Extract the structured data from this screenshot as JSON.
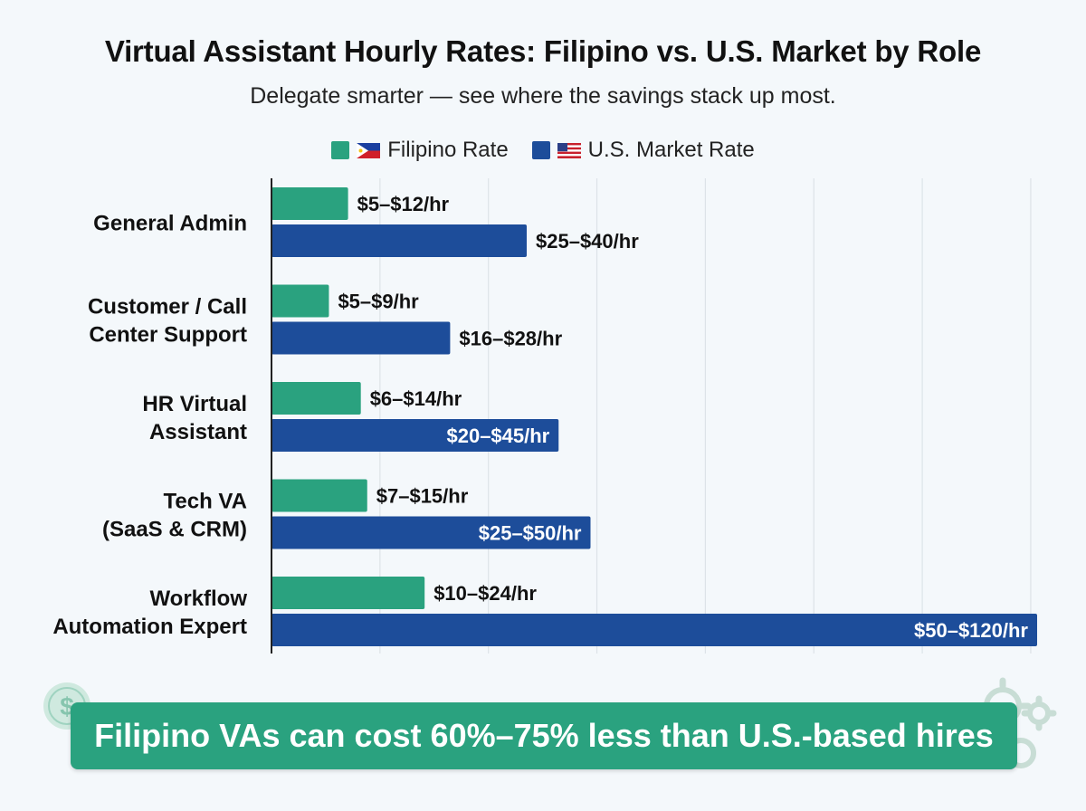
{
  "title": "Virtual Assistant Hourly Rates: Filipino vs. U.S. Market by Role",
  "subtitle": "Delegate smarter — see where the savings stack up most.",
  "legend": {
    "filipino": {
      "label": "Filipino Rate",
      "color": "#2aa27f",
      "flag_icon": "philippines-flag-icon"
    },
    "us": {
      "label": "U.S. Market Rate",
      "color": "#1d4d9a",
      "flag_icon": "us-flag-icon"
    }
  },
  "banner": {
    "text": "Filipino VAs can cost 60%–75% less than U.S.-based hires"
  },
  "chart_data": {
    "type": "bar",
    "orientation": "horizontal",
    "categories": [
      [
        "General Admin"
      ],
      [
        "Customer / Call",
        "Center Support"
      ],
      [
        "HR Virtual",
        "Assistant"
      ],
      [
        "Tech VA",
        "(SaaS & CRM)"
      ],
      [
        "Workflow",
        "Automation Expert"
      ]
    ],
    "xlim": [
      0,
      125
    ],
    "grid": true,
    "legend_position": "top-center",
    "series": [
      {
        "name": "Filipino Rate",
        "color": "#2aa27f",
        "values": [
          12,
          9,
          14,
          15,
          24
        ],
        "labels": [
          "$5–$12/hr",
          "$5–$9/hr",
          "$6–$14/hr",
          "$7–$15/hr",
          "$10–$24/hr"
        ]
      },
      {
        "name": "U.S. Market Rate",
        "color": "#1d4d9a",
        "values": [
          40,
          28,
          45,
          50,
          120
        ],
        "labels": [
          "$25–$40/hr",
          "$16–$28/hr",
          "$20–$45/hr",
          "$25–$50/hr",
          "$50–$120/hr"
        ]
      }
    ]
  }
}
